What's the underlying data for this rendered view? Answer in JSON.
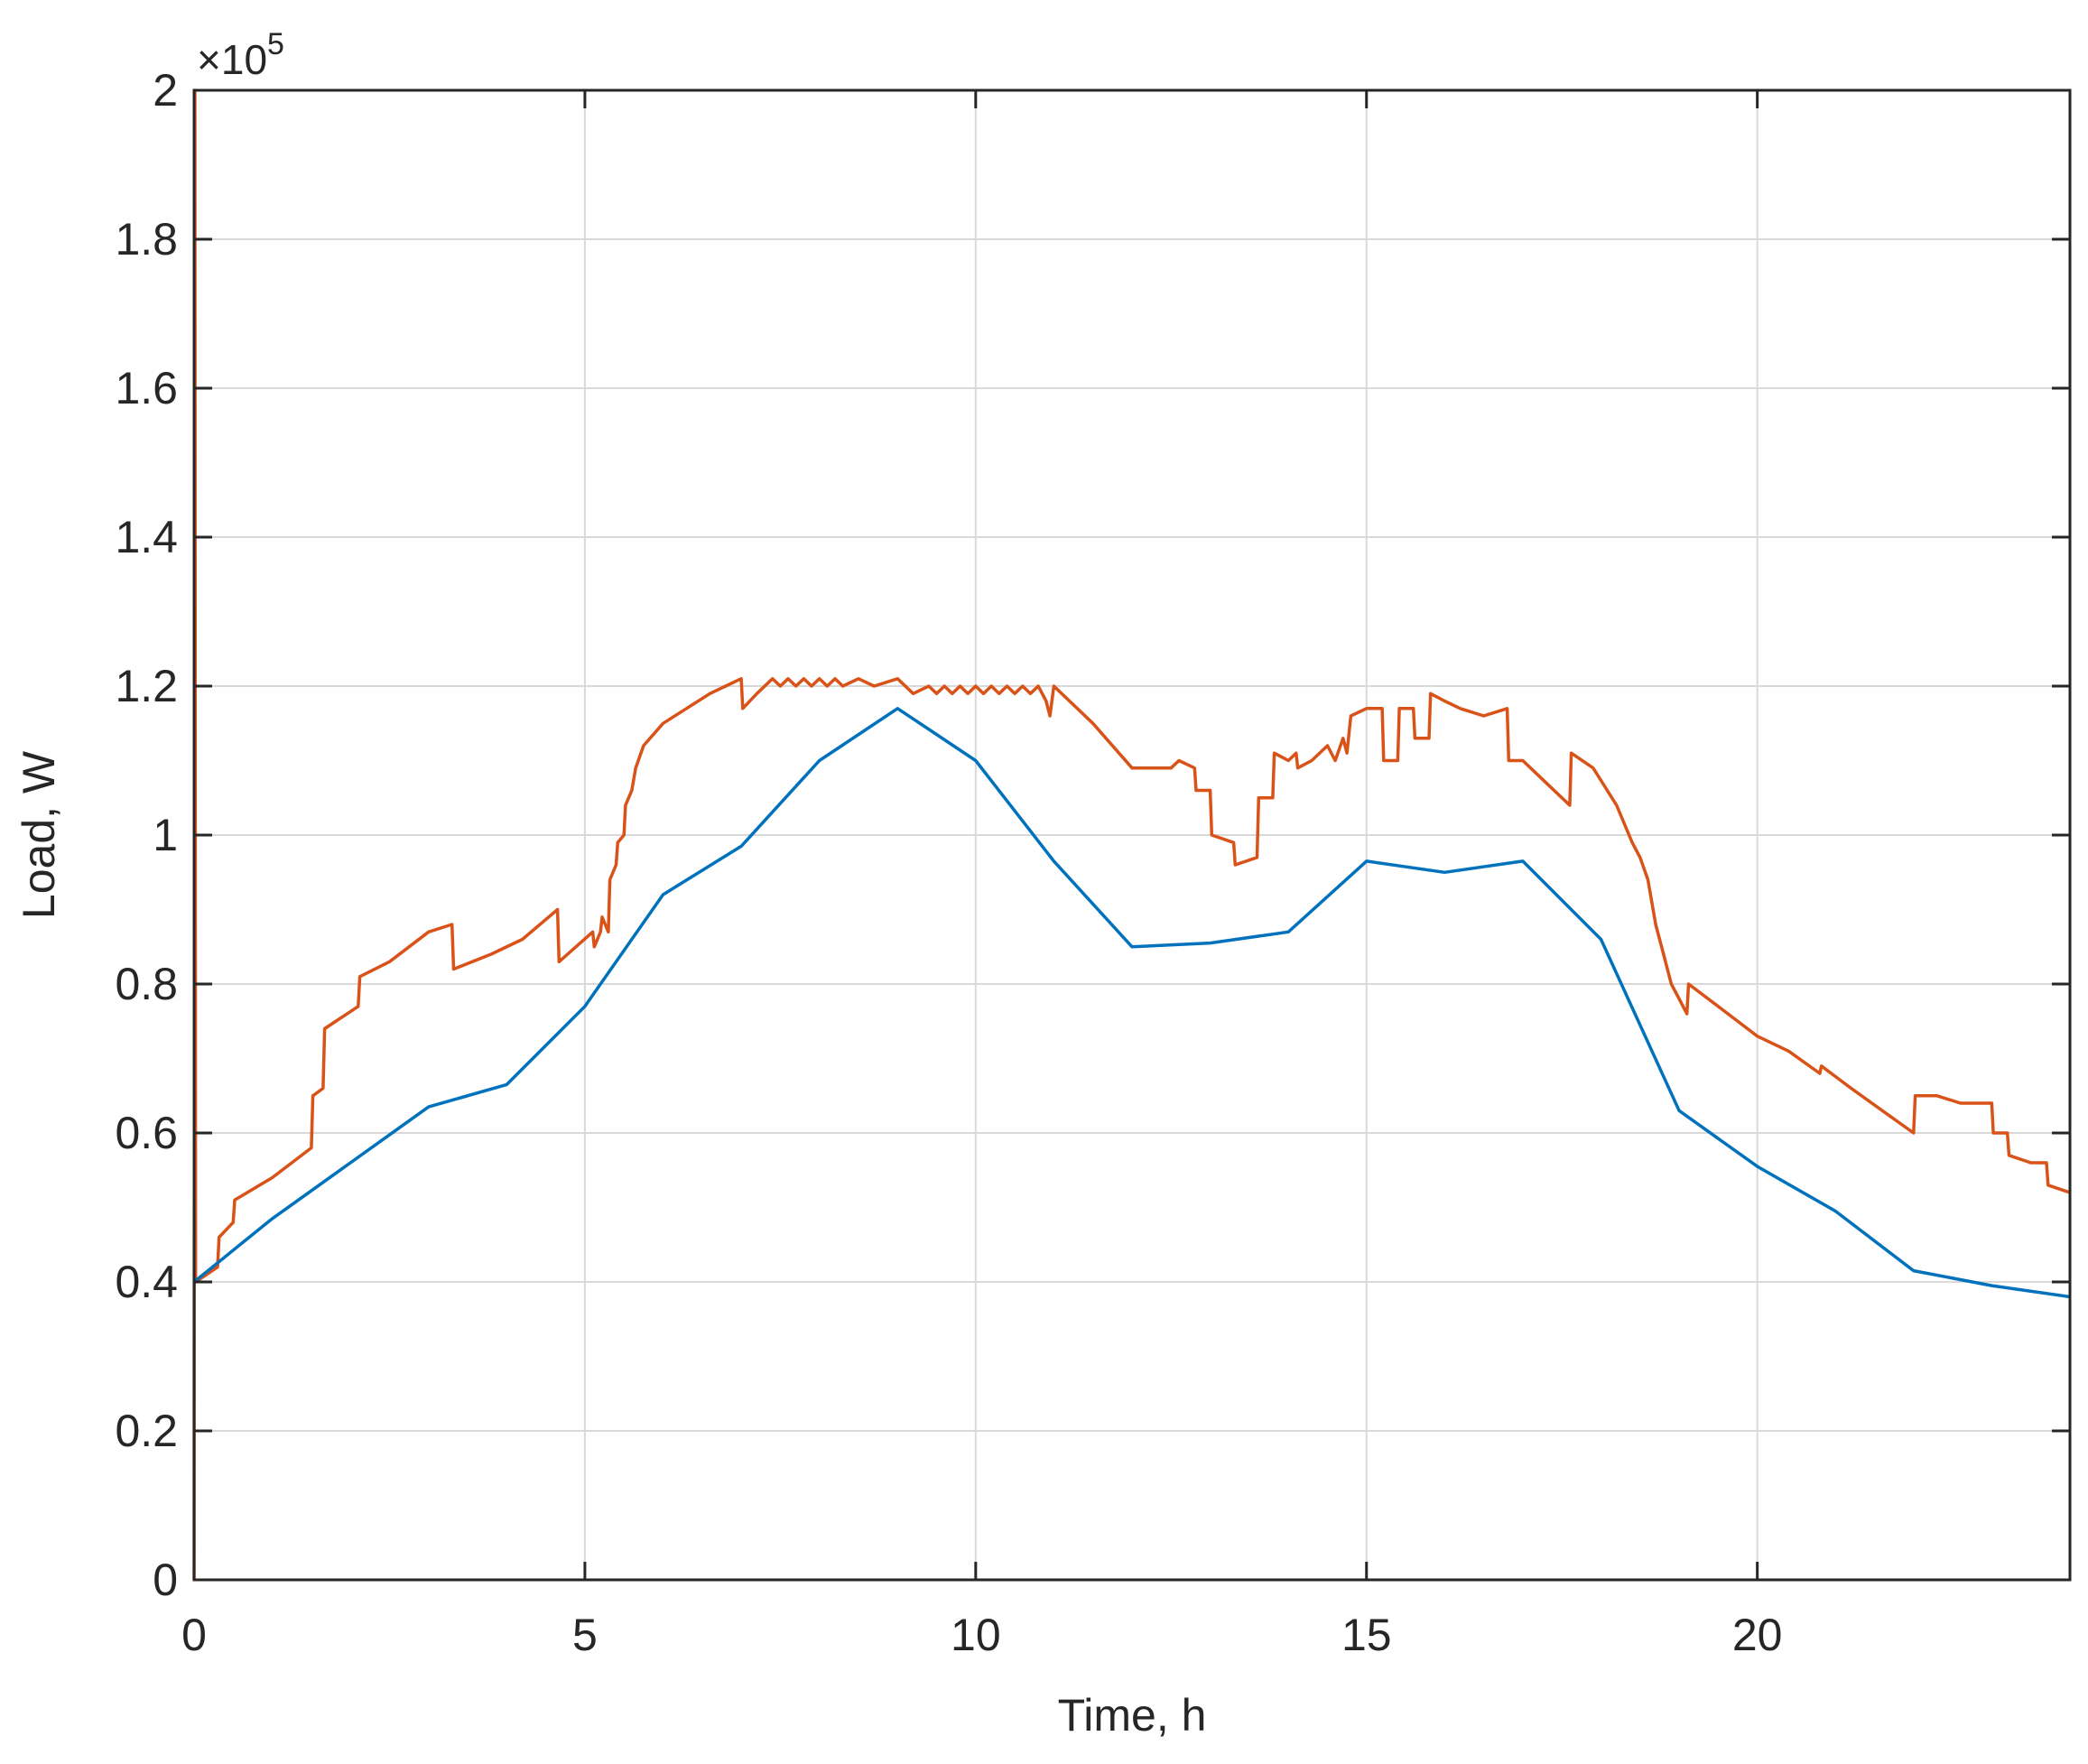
{
  "chart_data": {
    "type": "line",
    "title": "",
    "xlabel": "Time, h",
    "ylabel": "Load, W",
    "xlim": [
      0,
      24
    ],
    "ylim": [
      0,
      200000
    ],
    "x_ticks": [
      0,
      5,
      10,
      15,
      20
    ],
    "y_ticks": [
      0,
      20000,
      40000,
      60000,
      80000,
      100000,
      120000,
      140000,
      160000,
      180000,
      200000
    ],
    "y_tick_labels": [
      "0",
      "0.2",
      "0.4",
      "0.6",
      "0.8",
      "1",
      "1.2",
      "1.4",
      "1.6",
      "1.8",
      "2"
    ],
    "y_exponent_base": "×10",
    "y_exponent_power": "5",
    "grid": true,
    "legend": "none",
    "colors": {
      "series_red": "#d95319",
      "series_blue": "#0072bd",
      "grid": "#d9d9d9",
      "axis": "#262626"
    },
    "series": [
      {
        "color": "#d95319",
        "points": [
          [
            0,
            0
          ],
          [
            0.01,
            200000
          ],
          [
            0.02,
            40000
          ],
          [
            0.3,
            42000
          ],
          [
            0.32,
            46000
          ],
          [
            0.5,
            48000
          ],
          [
            0.52,
            51000
          ],
          [
            1.0,
            54000
          ],
          [
            1.5,
            58000
          ],
          [
            1.52,
            65000
          ],
          [
            1.65,
            66000
          ],
          [
            1.67,
            74000
          ],
          [
            2.1,
            77000
          ],
          [
            2.12,
            81000
          ],
          [
            2.5,
            83000
          ],
          [
            3.0,
            87000
          ],
          [
            3.3,
            88000
          ],
          [
            3.32,
            82000
          ],
          [
            3.8,
            84000
          ],
          [
            4.2,
            86000
          ],
          [
            4.65,
            90000
          ],
          [
            4.67,
            83000
          ],
          [
            5.1,
            87000
          ],
          [
            5.12,
            85000
          ],
          [
            5.2,
            87000
          ],
          [
            5.22,
            89000
          ],
          [
            5.3,
            87000
          ],
          [
            5.32,
            94000
          ],
          [
            5.4,
            96000
          ],
          [
            5.42,
            99000
          ],
          [
            5.5,
            100000
          ],
          [
            5.52,
            104000
          ],
          [
            5.6,
            106000
          ],
          [
            5.65,
            109000
          ],
          [
            5.75,
            112000
          ],
          [
            6.0,
            115000
          ],
          [
            6.3,
            117000
          ],
          [
            6.6,
            119000
          ],
          [
            6.8,
            120000
          ],
          [
            7.0,
            121000
          ],
          [
            7.02,
            117000
          ],
          [
            7.2,
            119000
          ],
          [
            7.4,
            121000
          ],
          [
            7.5,
            120000
          ],
          [
            7.6,
            121000
          ],
          [
            7.7,
            120000
          ],
          [
            7.8,
            121000
          ],
          [
            7.9,
            120000
          ],
          [
            8.0,
            121000
          ],
          [
            8.1,
            120000
          ],
          [
            8.2,
            121000
          ],
          [
            8.3,
            120000
          ],
          [
            8.5,
            121000
          ],
          [
            8.7,
            120000
          ],
          [
            9.0,
            121000
          ],
          [
            9.2,
            119000
          ],
          [
            9.4,
            120000
          ],
          [
            9.5,
            119000
          ],
          [
            9.6,
            120000
          ],
          [
            9.7,
            119000
          ],
          [
            9.8,
            120000
          ],
          [
            9.9,
            119000
          ],
          [
            10.0,
            120000
          ],
          [
            10.1,
            119000
          ],
          [
            10.2,
            120000
          ],
          [
            10.3,
            119000
          ],
          [
            10.4,
            120000
          ],
          [
            10.5,
            119000
          ],
          [
            10.6,
            120000
          ],
          [
            10.7,
            119000
          ],
          [
            10.8,
            120000
          ],
          [
            10.9,
            118000
          ],
          [
            10.95,
            116000
          ],
          [
            11.0,
            120000
          ],
          [
            11.2,
            118000
          ],
          [
            11.5,
            115000
          ],
          [
            12.0,
            109000
          ],
          [
            12.5,
            109000
          ],
          [
            12.6,
            110000
          ],
          [
            12.8,
            109000
          ],
          [
            12.82,
            106000
          ],
          [
            13.0,
            106000
          ],
          [
            13.02,
            100000
          ],
          [
            13.3,
            99000
          ],
          [
            13.32,
            96000
          ],
          [
            13.6,
            97000
          ],
          [
            13.62,
            105000
          ],
          [
            13.8,
            105000
          ],
          [
            13.82,
            111000
          ],
          [
            14.0,
            110000
          ],
          [
            14.1,
            111000
          ],
          [
            14.12,
            109000
          ],
          [
            14.3,
            110000
          ],
          [
            14.5,
            112000
          ],
          [
            14.6,
            110000
          ],
          [
            14.7,
            113000
          ],
          [
            14.75,
            111000
          ],
          [
            14.8,
            116000
          ],
          [
            15.0,
            117000
          ],
          [
            15.2,
            117000
          ],
          [
            15.22,
            110000
          ],
          [
            15.4,
            110000
          ],
          [
            15.42,
            117000
          ],
          [
            15.6,
            117000
          ],
          [
            15.62,
            113000
          ],
          [
            15.8,
            113000
          ],
          [
            15.82,
            119000
          ],
          [
            16.0,
            118000
          ],
          [
            16.2,
            117000
          ],
          [
            16.5,
            116000
          ],
          [
            16.8,
            117000
          ],
          [
            16.82,
            110000
          ],
          [
            17.0,
            110000
          ],
          [
            17.3,
            107000
          ],
          [
            17.6,
            104000
          ],
          [
            17.62,
            111000
          ],
          [
            17.9,
            109000
          ],
          [
            18.2,
            104000
          ],
          [
            18.4,
            99000
          ],
          [
            18.5,
            97000
          ],
          [
            18.6,
            94000
          ],
          [
            18.7,
            88000
          ],
          [
            18.8,
            84000
          ],
          [
            18.9,
            80000
          ],
          [
            19.0,
            78000
          ],
          [
            19.1,
            76000
          ],
          [
            19.12,
            80000
          ],
          [
            19.5,
            77000
          ],
          [
            20.0,
            73000
          ],
          [
            20.4,
            71000
          ],
          [
            20.8,
            68000
          ],
          [
            20.82,
            69000
          ],
          [
            21.2,
            66000
          ],
          [
            21.6,
            63000
          ],
          [
            22.0,
            60000
          ],
          [
            22.02,
            65000
          ],
          [
            22.3,
            65000
          ],
          [
            22.6,
            64000
          ],
          [
            22.8,
            64000
          ],
          [
            23.0,
            64000
          ],
          [
            23.02,
            60000
          ],
          [
            23.2,
            60000
          ],
          [
            23.22,
            57000
          ],
          [
            23.5,
            56000
          ],
          [
            23.7,
            56000
          ],
          [
            23.72,
            53000
          ],
          [
            24.0,
            52000
          ]
        ]
      },
      {
        "color": "#0072bd",
        "points": [
          [
            0,
            40000
          ],
          [
            1,
            48500
          ],
          [
            2,
            56000
          ],
          [
            3,
            63500
          ],
          [
            4,
            66500
          ],
          [
            5,
            77000
          ],
          [
            6,
            92000
          ],
          [
            7,
            98500
          ],
          [
            8,
            110000
          ],
          [
            9,
            117000
          ],
          [
            10,
            110000
          ],
          [
            11,
            96500
          ],
          [
            12,
            85000
          ],
          [
            13,
            85500
          ],
          [
            14,
            87000
          ],
          [
            15,
            96500
          ],
          [
            16,
            95000
          ],
          [
            17,
            96500
          ],
          [
            18,
            86000
          ],
          [
            19,
            63000
          ],
          [
            20,
            55500
          ],
          [
            21,
            49500
          ],
          [
            22,
            41500
          ],
          [
            23,
            39500
          ],
          [
            24,
            38000
          ]
        ]
      }
    ]
  }
}
